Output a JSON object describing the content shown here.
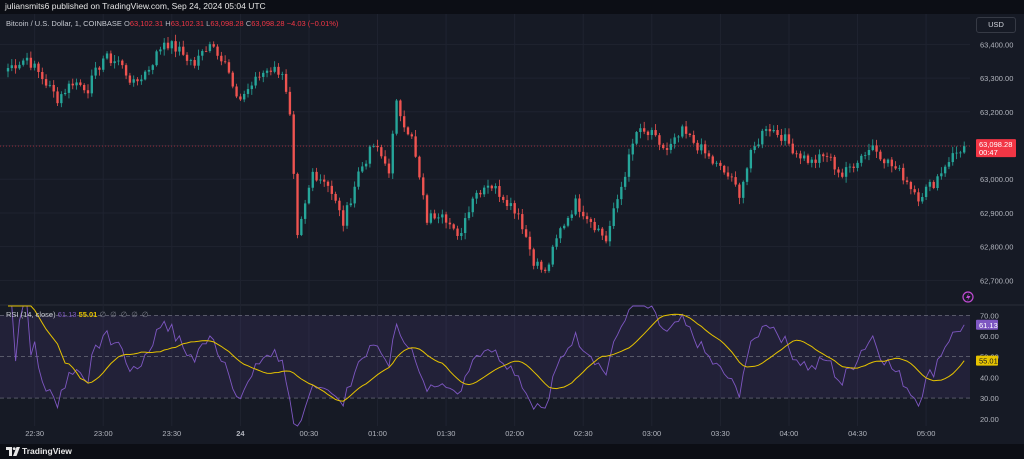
{
  "header": {
    "caption": "juliansmits6 published on TradingView.com, Sep 24, 2024 05:04 UTC"
  },
  "legend": {
    "symbol": "Bitcoin / U.S. Dollar, 1, COINBASE",
    "o_label": "O",
    "o_value": "63,102.31",
    "h_label": "H",
    "h_value": "63,102.31",
    "l_label": "L",
    "l_value": "63,098.28",
    "c_label": "C",
    "c_value": "63,098.28",
    "change": "−4.03 (−0.01%)"
  },
  "currency_button": "USD",
  "rsi_legend": {
    "name": "RSI (14, close)",
    "value1": "61.13",
    "value2": "55.01",
    "na": "∅ ∅ ∅ ∅ ∅"
  },
  "footer": {
    "brand": "TradingView"
  },
  "colors": {
    "up": "#26a69a",
    "down": "#ef5350",
    "rsi": "#7e57c2",
    "rsi_ma": "#e6c300",
    "price_tag": "#f23645"
  },
  "icons": {
    "footer_logo": "tradingview-logo-icon",
    "indicator_marker": "lightning-circle-icon"
  },
  "chart_data": [
    {
      "type": "candlestick",
      "title": "Bitcoin / U.S. Dollar, 1, COINBASE",
      "y_ticks": [
        62700,
        62800,
        62900,
        63000,
        63100,
        63200,
        63300,
        63400
      ],
      "y_tick_labels": [
        "62,700.00",
        "62,800.00",
        "62,900.00",
        "63,000.00",
        "63,100.00",
        "63,200.00",
        "63,300.00",
        "63,400.00"
      ],
      "ylim": [
        62630,
        63490
      ],
      "last_price": 63098.28,
      "last_price_label": "63,098.28",
      "countdown_label": "00:47",
      "grid": true,
      "waypoints": [
        [
          0,
          63330
        ],
        [
          5,
          63360
        ],
        [
          9,
          63300
        ],
        [
          13,
          63240
        ],
        [
          17,
          63290
        ],
        [
          21,
          63270
        ],
        [
          25,
          63360
        ],
        [
          29,
          63350
        ],
        [
          33,
          63280
        ],
        [
          37,
          63330
        ],
        [
          41,
          63410
        ],
        [
          45,
          63380
        ],
        [
          49,
          63340
        ],
        [
          53,
          63410
        ],
        [
          57,
          63350
        ],
        [
          60,
          63230
        ],
        [
          64,
          63280
        ],
        [
          68,
          63330
        ],
        [
          72,
          63320
        ],
        [
          74,
          63180
        ],
        [
          76,
          62820
        ],
        [
          80,
          63020
        ],
        [
          84,
          62990
        ],
        [
          88,
          62870
        ],
        [
          92,
          63020
        ],
        [
          96,
          63100
        ],
        [
          100,
          63030
        ],
        [
          102,
          63220
        ],
        [
          106,
          63120
        ],
        [
          110,
          62880
        ],
        [
          114,
          62910
        ],
        [
          118,
          62820
        ],
        [
          122,
          62950
        ],
        [
          126,
          62990
        ],
        [
          130,
          62950
        ],
        [
          134,
          62900
        ],
        [
          138,
          62760
        ],
        [
          141,
          62720
        ],
        [
          145,
          62850
        ],
        [
          149,
          62930
        ],
        [
          153,
          62880
        ],
        [
          157,
          62820
        ],
        [
          161,
          62980
        ],
        [
          165,
          63140
        ],
        [
          169,
          63130
        ],
        [
          173,
          63080
        ],
        [
          177,
          63140
        ],
        [
          181,
          63100
        ],
        [
          185,
          63050
        ],
        [
          189,
          63010
        ],
        [
          192,
          62960
        ],
        [
          195,
          63070
        ],
        [
          199,
          63160
        ],
        [
          203,
          63130
        ],
        [
          207,
          63080
        ],
        [
          211,
          63050
        ],
        [
          215,
          63070
        ],
        [
          219,
          63010
        ],
        [
          223,
          63060
        ],
        [
          227,
          63100
        ],
        [
          231,
          63050
        ],
        [
          235,
          63010
        ],
        [
          239,
          62950
        ],
        [
          243,
          62990
        ],
        [
          247,
          63060
        ],
        [
          251,
          63098
        ]
      ]
    },
    {
      "type": "line",
      "title": "RSI (14, close)",
      "series": [
        {
          "name": "RSI"
        },
        {
          "name": "MA"
        }
      ],
      "levels": [
        30,
        50,
        70
      ],
      "y_ticks": [
        20,
        30,
        40,
        50,
        60,
        70
      ],
      "y_tick_labels": [
        "20.00",
        "30.00",
        "40.00",
        "50.00",
        "60.00",
        "70.00"
      ],
      "ylim": [
        16.5,
        74.5
      ],
      "current_rsi_label": "61.13",
      "current_ma_label": "55.01",
      "x_ticks": [
        {
          "pos": 7,
          "label": "22:30"
        },
        {
          "pos": 25,
          "label": "23:00"
        },
        {
          "pos": 43,
          "label": "23:30"
        },
        {
          "pos": 61,
          "label": "24"
        },
        {
          "pos": 79,
          "label": "00:30"
        },
        {
          "pos": 97,
          "label": "01:00"
        },
        {
          "pos": 115,
          "label": "01:30"
        },
        {
          "pos": 133,
          "label": "02:00"
        },
        {
          "pos": 151,
          "label": "02:30"
        },
        {
          "pos": 169,
          "label": "03:00"
        },
        {
          "pos": 187,
          "label": "03:30"
        },
        {
          "pos": 205,
          "label": "04:00"
        },
        {
          "pos": 223,
          "label": "04:30"
        },
        {
          "pos": 241,
          "label": "05:00"
        }
      ]
    }
  ]
}
